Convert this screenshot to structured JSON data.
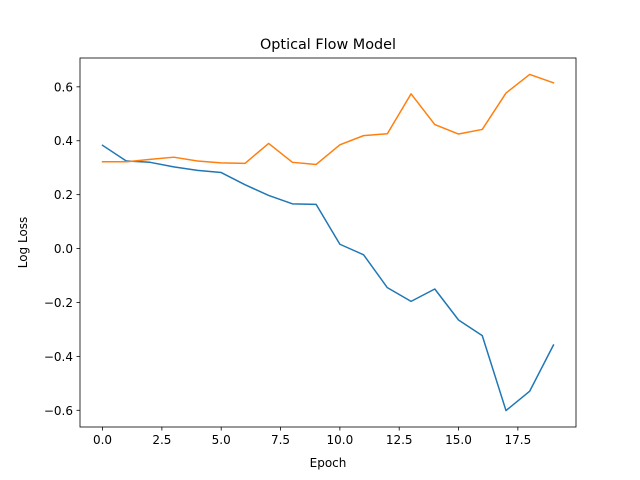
{
  "chart_data": {
    "type": "line",
    "title": "Optical Flow Model",
    "xlabel": "Epoch",
    "ylabel": "Log Loss",
    "xlim": [
      -0.95,
      19.95
    ],
    "ylim": [
      -0.662,
      0.707
    ],
    "xticks": [
      0.0,
      2.5,
      5.0,
      7.5,
      10.0,
      12.5,
      15.0,
      17.5
    ],
    "xtick_labels": [
      "0.0",
      "2.5",
      "5.0",
      "7.5",
      "10.0",
      "12.5",
      "15.0",
      "17.5"
    ],
    "yticks": [
      -0.6,
      -0.4,
      -0.2,
      0.0,
      0.2,
      0.4,
      0.6
    ],
    "ytick_labels": [
      "−0.6",
      "−0.4",
      "−0.2",
      "0.0",
      "0.2",
      "0.4",
      "0.6"
    ],
    "grid": false,
    "x": [
      0,
      1,
      2,
      3,
      4,
      5,
      6,
      7,
      8,
      9,
      10,
      11,
      12,
      13,
      14,
      15,
      16,
      17,
      18,
      19
    ],
    "series": [
      {
        "color": "#1f77b4",
        "values": [
          0.383,
          0.325,
          0.32,
          0.303,
          0.29,
          0.282,
          0.237,
          0.197,
          0.166,
          0.164,
          0.016,
          -0.023,
          -0.145,
          -0.196,
          -0.15,
          -0.265,
          -0.323,
          -0.601,
          -0.529,
          -0.358
        ]
      },
      {
        "color": "#ff7f0e",
        "values": [
          0.322,
          0.322,
          0.331,
          0.339,
          0.325,
          0.318,
          0.316,
          0.39,
          0.32,
          0.312,
          0.385,
          0.419,
          0.426,
          0.574,
          0.46,
          0.425,
          0.442,
          0.577,
          0.646,
          0.615
        ]
      }
    ]
  }
}
